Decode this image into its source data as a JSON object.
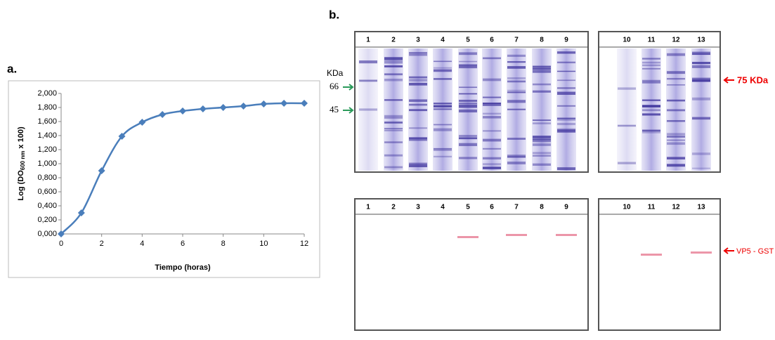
{
  "chart_data": {
    "type": "line",
    "panel_label": "a.",
    "x": [
      0,
      1,
      2,
      3,
      4,
      5,
      6,
      7,
      8,
      9,
      10,
      11,
      12
    ],
    "values": [
      0,
      0.3,
      0.9,
      1.39,
      1.59,
      1.7,
      1.75,
      1.78,
      1.8,
      1.82,
      1.85,
      1.86,
      1.86
    ],
    "color": "#4a7ebb",
    "xlabel": "Tiempo (horas)",
    "ylabel": "Log (DO",
    "ylabel_sub": "600 nm",
    "ylabel_end": " x 100)",
    "xlim": [
      0,
      12
    ],
    "xticks": [
      0,
      2,
      4,
      6,
      8,
      10,
      12
    ],
    "ylim": [
      0,
      2
    ],
    "yticks": [
      {
        "value": 0,
        "label": "0,000"
      },
      {
        "value": 0.2,
        "label": "0,200"
      },
      {
        "value": 0.4,
        "label": "0,400"
      },
      {
        "value": 0.6,
        "label": "0,600"
      },
      {
        "value": 0.8,
        "label": "0,800"
      },
      {
        "value": 1,
        "label": "1,000"
      },
      {
        "value": 1.2,
        "label": "1,200"
      },
      {
        "value": 1.4,
        "label": "1,400"
      },
      {
        "value": 1.6,
        "label": "1,600"
      },
      {
        "value": 1.8,
        "label": "1,800"
      },
      {
        "value": 2,
        "label": "2,000"
      }
    ]
  },
  "panel_b": {
    "label": "b.",
    "unit": "KDa",
    "marker_66": "66",
    "marker_45": "45",
    "top_arrow": "75 KDa",
    "bottom_arrow": "VP5 - GST",
    "left_lanes": [
      "1",
      "2",
      "3",
      "4",
      "5",
      "6",
      "7",
      "8",
      "9"
    ],
    "right_lanes": [
      "10",
      "11",
      "12",
      "13"
    ]
  }
}
